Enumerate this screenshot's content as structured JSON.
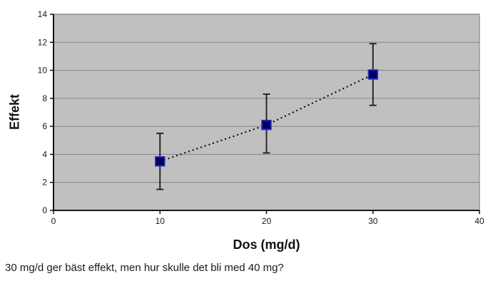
{
  "figure": {
    "caption": "30 mg/d ger bäst effekt, men hur skulle det bli med 40 mg?"
  },
  "chart_data": {
    "type": "scatter",
    "title": "",
    "xlabel": "Dos (mg/d)",
    "ylabel": "Effekt",
    "x": [
      10,
      20,
      30
    ],
    "y": [
      3.5,
      6.1,
      9.7
    ],
    "error_low": [
      1.5,
      4.1,
      7.5
    ],
    "error_high": [
      5.5,
      8.3,
      11.9
    ],
    "xlim": [
      0,
      40
    ],
    "ylim": [
      0,
      14
    ],
    "x_ticks": [
      0,
      10,
      20,
      30,
      40
    ],
    "y_ticks": [
      0,
      2,
      4,
      6,
      8,
      10,
      12,
      14
    ],
    "line_style": "dotted",
    "marker": "square-x",
    "legend": "none",
    "grid": "horizontal",
    "colors": {
      "marker_fill": "#000099",
      "marker_edge": "#3333b3",
      "marker_cross": "#000000",
      "line": "#000000",
      "error_bar": "#1a1a1a",
      "plot_bg": "#c0c0c0",
      "plot_border": "#999999",
      "grid": "#858585",
      "axis": "#000000",
      "tick_label": "#1a1a1a"
    }
  }
}
